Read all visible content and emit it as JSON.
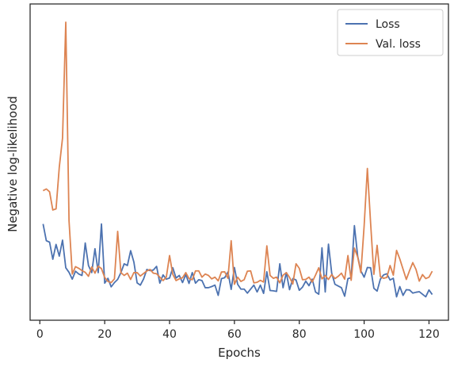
{
  "chart_data": {
    "type": "line",
    "xlabel": "Epochs",
    "ylabel": "Negative log-likelihood",
    "xlim": [
      -3,
      126
    ],
    "ylim": [
      0,
      1
    ],
    "xticks": [
      0,
      20,
      40,
      60,
      80,
      100,
      120
    ],
    "y_ticks_labeled": false,
    "grid": false,
    "legend_position": "top-right",
    "x": [
      1,
      2,
      3,
      4,
      5,
      6,
      7,
      8,
      9,
      10,
      11,
      12,
      13,
      14,
      15,
      16,
      17,
      18,
      19,
      20,
      21,
      22,
      23,
      24,
      25,
      26,
      27,
      28,
      29,
      30,
      31,
      32,
      33,
      34,
      35,
      36,
      37,
      38,
      39,
      40,
      41,
      42,
      43,
      44,
      45,
      46,
      47,
      48,
      49,
      50,
      51,
      52,
      53,
      54,
      55,
      56,
      57,
      58,
      59,
      60,
      61,
      62,
      63,
      64,
      65,
      66,
      67,
      68,
      69,
      70,
      71,
      72,
      73,
      74,
      75,
      76,
      77,
      78,
      79,
      80,
      81,
      82,
      83,
      84,
      85,
      86,
      87,
      88,
      89,
      90,
      91,
      92,
      93,
      94,
      95,
      96,
      97,
      98,
      99,
      100,
      101,
      102,
      103,
      104,
      105,
      106,
      107,
      108,
      109,
      110,
      111,
      112,
      113,
      114,
      115,
      116,
      117,
      118,
      119,
      120,
      121
    ],
    "series": [
      {
        "name": "Loss",
        "color": "#4c72b0",
        "values": [
          0.291,
          0.232,
          0.227,
          0.167,
          0.219,
          0.178,
          0.234,
          0.137,
          0.121,
          0.097,
          0.125,
          0.115,
          0.11,
          0.224,
          0.145,
          0.12,
          0.204,
          0.12,
          0.291,
          0.083,
          0.1,
          0.07,
          0.085,
          0.096,
          0.12,
          0.151,
          0.145,
          0.197,
          0.157,
          0.084,
          0.076,
          0.098,
          0.131,
          0.127,
          0.129,
          0.142,
          0.083,
          0.112,
          0.097,
          0.101,
          0.137,
          0.101,
          0.11,
          0.085,
          0.113,
          0.082,
          0.12,
          0.083,
          0.095,
          0.092,
          0.067,
          0.067,
          0.071,
          0.076,
          0.04,
          0.099,
          0.102,
          0.122,
          0.061,
          0.138,
          0.079,
          0.062,
          0.062,
          0.048,
          0.062,
          0.076,
          0.052,
          0.076,
          0.047,
          0.123,
          0.057,
          0.056,
          0.054,
          0.151,
          0.067,
          0.12,
          0.06,
          0.099,
          0.094,
          0.058,
          0.069,
          0.09,
          0.074,
          0.097,
          0.052,
          0.044,
          0.207,
          0.052,
          0.22,
          0.118,
          0.079,
          0.073,
          0.067,
          0.037,
          0.099,
          0.102,
          0.285,
          0.178,
          0.126,
          0.104,
          0.138,
          0.137,
          0.065,
          0.055,
          0.097,
          0.112,
          0.116,
          0.094,
          0.1,
          0.035,
          0.071,
          0.04,
          0.06,
          0.059,
          0.048,
          0.051,
          0.053,
          0.044,
          0.035,
          0.059,
          0.043
        ]
      },
      {
        "name": "Val. loss",
        "color": "#dd8452",
        "values": [
          0.408,
          0.414,
          0.404,
          0.34,
          0.344,
          0.491,
          0.593,
          1.0,
          0.302,
          0.115,
          0.141,
          0.135,
          0.127,
          0.121,
          0.107,
          0.14,
          0.118,
          0.143,
          0.134,
          0.103,
          0.089,
          0.085,
          0.098,
          0.265,
          0.12,
          0.11,
          0.118,
          0.096,
          0.12,
          0.12,
          0.108,
          0.117,
          0.126,
          0.131,
          0.118,
          0.116,
          0.104,
          0.092,
          0.104,
          0.18,
          0.114,
          0.092,
          0.098,
          0.102,
          0.12,
          0.099,
          0.095,
          0.126,
          0.126,
          0.104,
          0.115,
          0.11,
          0.098,
          0.104,
          0.091,
          0.122,
          0.123,
          0.1,
          0.232,
          0.079,
          0.104,
          0.089,
          0.095,
          0.125,
          0.126,
          0.084,
          0.086,
          0.093,
          0.087,
          0.214,
          0.11,
          0.1,
          0.104,
          0.084,
          0.111,
          0.12,
          0.103,
          0.08,
          0.151,
          0.135,
          0.095,
          0.096,
          0.104,
          0.087,
          0.111,
          0.137,
          0.098,
          0.11,
          0.096,
          0.113,
          0.099,
          0.107,
          0.118,
          0.097,
          0.18,
          0.093,
          0.206,
          0.175,
          0.12,
          0.284,
          0.486,
          0.293,
          0.114,
          0.216,
          0.106,
          0.1,
          0.103,
          0.145,
          0.111,
          0.198,
          0.168,
          0.132,
          0.096,
          0.127,
          0.155,
          0.131,
          0.09,
          0.113,
          0.099,
          0.104,
          0.125
        ]
      }
    ]
  }
}
